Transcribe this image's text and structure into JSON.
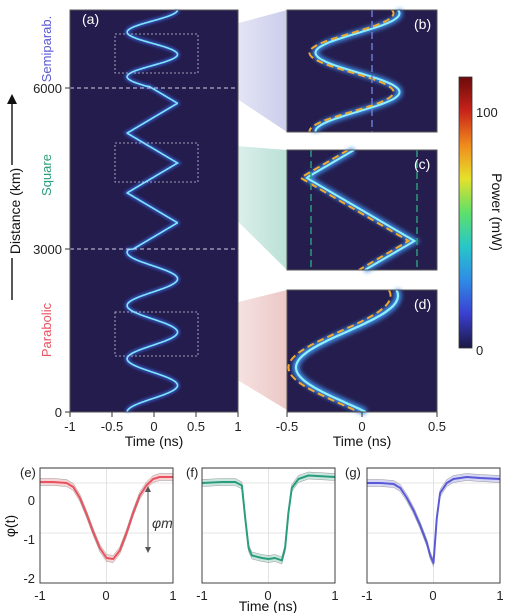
{
  "chart_data": [
    {
      "panel": "(a)",
      "type": "heatmap",
      "xlabel": "Time (ns)",
      "ylabel": "Distance (km)",
      "xlim": [
        -1,
        1
      ],
      "ylim": [
        0,
        7400
      ],
      "xticks": [
        "-1",
        "-0.5",
        "0",
        "0.5",
        "1"
      ],
      "yticks": [
        "0",
        "3000",
        "6000"
      ],
      "segments": [
        {
          "label": "Parabolic",
          "from": 0,
          "to": 3000,
          "color": "#e8535f",
          "period_km": 980
        },
        {
          "label": "Square",
          "from": 3000,
          "to": 6000,
          "color": "#2a9d7c",
          "period_km": 1100
        },
        {
          "label": "Semiparab.",
          "from": 6000,
          "to": 7400,
          "color": "#5a5ad6",
          "period_km": 820
        }
      ],
      "amplitude_ns": 0.3,
      "grid": false
    },
    {
      "panel": "(b)",
      "type": "heatmap",
      "zoom_of": "Semiparab."
    },
    {
      "panel": "(c)",
      "type": "heatmap",
      "zoom_of": "Square"
    },
    {
      "panel": "(d)",
      "type": "heatmap",
      "zoom_of": "Parabolic",
      "xlabel": "Time (ns)",
      "xlim": [
        -0.5,
        0.5
      ],
      "xticks": [
        "-0.5",
        "0",
        "0.5"
      ]
    },
    {
      "type": "colorbar",
      "label": "Power (mW)",
      "range": [
        0,
        100
      ],
      "ticks": [
        "0",
        "100"
      ],
      "colormap": [
        "#1b1842",
        "#3a3fd0",
        "#2f8be6",
        "#27c7c9",
        "#5ee06a",
        "#e6e12b",
        "#f08a1c",
        "#c8231a",
        "#6b0a0a"
      ]
    },
    {
      "panel": "(e)",
      "type": "line",
      "ylabel": "φ(t)",
      "annotation": "φm",
      "xlim": [
        -1,
        1
      ],
      "ylim": [
        -2,
        0.3
      ],
      "xticks": [
        "-1",
        "0",
        "1"
      ],
      "yticks": [
        "0",
        "-1",
        "-2"
      ],
      "color": "#e8535f",
      "x": [
        -1,
        -0.8,
        -0.6,
        -0.5,
        -0.4,
        -0.3,
        -0.2,
        -0.1,
        0,
        0.1,
        0.2,
        0.3,
        0.4,
        0.5,
        0.6,
        0.7,
        0.8,
        1
      ],
      "values": [
        0.02,
        0.02,
        0.0,
        -0.08,
        -0.3,
        -0.62,
        -0.98,
        -1.3,
        -1.5,
        -1.52,
        -1.35,
        -1.0,
        -0.6,
        -0.25,
        -0.05,
        0.08,
        0.12,
        0.12
      ]
    },
    {
      "panel": "(f)",
      "type": "line",
      "xlabel": "Time (ns)",
      "xlim": [
        -1,
        1
      ],
      "ylim": [
        -2,
        0.3
      ],
      "xticks": [
        "-1",
        "0",
        "1"
      ],
      "color": "#2a9d7c",
      "x": [
        -1,
        -0.7,
        -0.5,
        -0.4,
        -0.35,
        -0.3,
        -0.25,
        -0.1,
        0,
        0.1,
        0.2,
        0.25,
        0.3,
        0.35,
        0.45,
        0.6,
        1
      ],
      "values": [
        0.0,
        0.02,
        0.02,
        -0.05,
        -0.7,
        -1.3,
        -1.45,
        -1.5,
        -1.52,
        -1.5,
        -1.55,
        -1.3,
        -0.6,
        -0.1,
        0.08,
        0.15,
        0.12
      ]
    },
    {
      "panel": "(g)",
      "type": "line",
      "xlim": [
        -1,
        1
      ],
      "ylim": [
        -2,
        0.3
      ],
      "xticks": [
        "-1",
        "0",
        "1"
      ],
      "color": "#5a5ad6",
      "x": [
        -1,
        -0.8,
        -0.6,
        -0.5,
        -0.4,
        -0.3,
        -0.2,
        -0.1,
        -0.05,
        0,
        0.05,
        0.1,
        0.2,
        0.3,
        0.5,
        0.7,
        1
      ],
      "values": [
        0.0,
        0.0,
        -0.02,
        -0.1,
        -0.3,
        -0.55,
        -0.85,
        -1.2,
        -1.45,
        -1.6,
        -0.7,
        -0.2,
        0.0,
        0.08,
        0.12,
        0.1,
        0.08
      ]
    }
  ]
}
